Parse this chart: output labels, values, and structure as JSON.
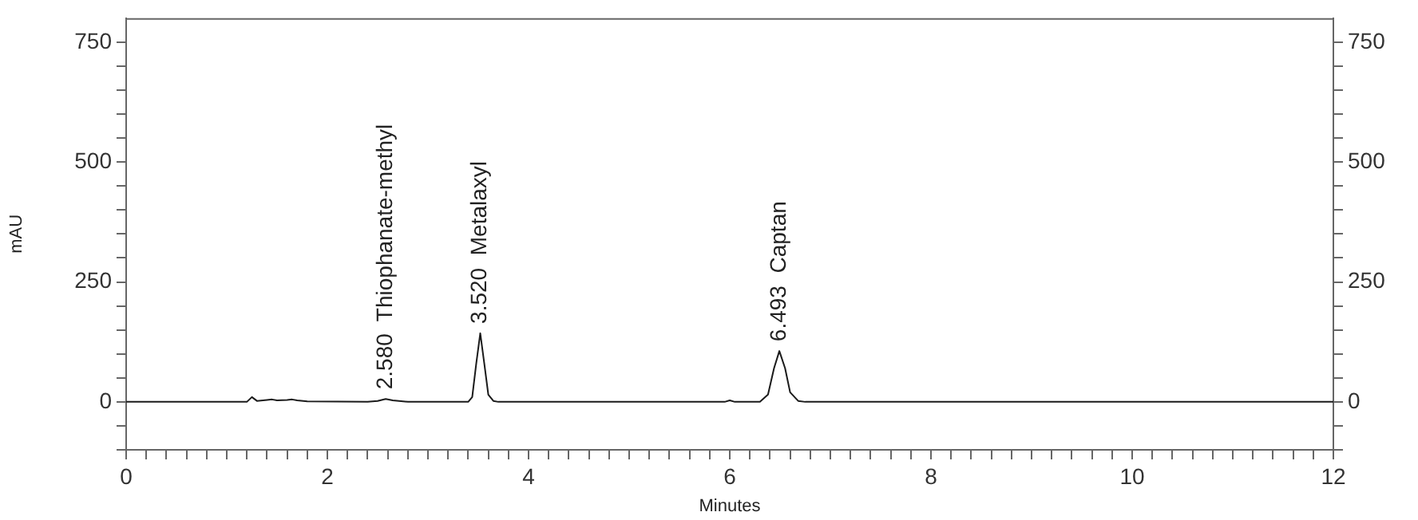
{
  "chart_data": {
    "type": "line",
    "xlabel": "Minutes",
    "ylabel": "mAU",
    "x": [
      0,
      1.2,
      1.25,
      1.3,
      1.4,
      1.45,
      1.5,
      1.6,
      1.65,
      1.7,
      1.8,
      2.4,
      2.5,
      2.58,
      2.65,
      2.8,
      3.4,
      3.44,
      3.48,
      3.52,
      3.56,
      3.6,
      3.65,
      3.7,
      5.95,
      6.0,
      6.05,
      6.3,
      6.38,
      6.44,
      6.493,
      6.55,
      6.6,
      6.68,
      6.75,
      12
    ],
    "series": [
      {
        "color": "#1a1a1a",
        "values": [
          0,
          0,
          10,
          2,
          4,
          5,
          3,
          4,
          5,
          3,
          1,
          0,
          2,
          6,
          3,
          0,
          0,
          10,
          80,
          143,
          80,
          15,
          2,
          0,
          0,
          3,
          0,
          0,
          15,
          70,
          106,
          70,
          20,
          2,
          0,
          0
        ]
      }
    ],
    "xlim": [
      0,
      12
    ],
    "xticks": [
      0,
      {
        "value": 0.2,
        "label": null
      },
      {
        "value": 0.4,
        "label": null
      },
      {
        "value": 0.6,
        "label": null
      },
      {
        "value": 0.8,
        "label": null
      },
      {
        "value": 1,
        "label": null
      },
      {
        "value": 1.2,
        "label": null
      },
      {
        "value": 1.4,
        "label": null
      },
      {
        "value": 1.6,
        "label": null
      },
      {
        "value": 1.8,
        "label": null
      },
      2,
      {
        "value": 2.2,
        "label": null
      },
      {
        "value": 2.4,
        "label": null
      },
      {
        "value": 2.6,
        "label": null
      },
      {
        "value": 2.8,
        "label": null
      },
      {
        "value": 3,
        "label": null
      },
      {
        "value": 3.2,
        "label": null
      },
      {
        "value": 3.4,
        "label": null
      },
      {
        "value": 3.6,
        "label": null
      },
      {
        "value": 3.8,
        "label": null
      },
      4,
      {
        "value": 4.2,
        "label": null
      },
      {
        "value": 4.4,
        "label": null
      },
      {
        "value": 4.6,
        "label": null
      },
      {
        "value": 4.8,
        "label": null
      },
      {
        "value": 5,
        "label": null
      },
      {
        "value": 5.2,
        "label": null
      },
      {
        "value": 5.4,
        "label": null
      },
      {
        "value": 5.6,
        "label": null
      },
      {
        "value": 5.8,
        "label": null
      },
      6,
      {
        "value": 6.2,
        "label": null
      },
      {
        "value": 6.4,
        "label": null
      },
      {
        "value": 6.6,
        "label": null
      },
      {
        "value": 6.8,
        "label": null
      },
      {
        "value": 7,
        "label": null
      },
      {
        "value": 7.2,
        "label": null
      },
      {
        "value": 7.4,
        "label": null
      },
      {
        "value": 7.6,
        "label": null
      },
      {
        "value": 7.8,
        "label": null
      },
      8,
      {
        "value": 8.2,
        "label": null
      },
      {
        "value": 8.4,
        "label": null
      },
      {
        "value": 8.6,
        "label": null
      },
      {
        "value": 8.8,
        "label": null
      },
      {
        "value": 9,
        "label": null
      },
      {
        "value": 9.2,
        "label": null
      },
      {
        "value": 9.4,
        "label": null
      },
      {
        "value": 9.6,
        "label": null
      },
      {
        "value": 9.8,
        "label": null
      },
      10,
      {
        "value": 10.2,
        "label": null
      },
      {
        "value": 10.4,
        "label": null
      },
      {
        "value": 10.6,
        "label": null
      },
      {
        "value": 10.8,
        "label": null
      },
      {
        "value": 11,
        "label": null
      },
      {
        "value": 11.2,
        "label": null
      },
      {
        "value": 11.4,
        "label": null
      },
      {
        "value": 11.6,
        "label": null
      },
      {
        "value": 11.8,
        "label": null
      },
      12
    ],
    "ylim": [
      -100,
      800
    ],
    "yticks": [
      {
        "value": -100,
        "label": null
      },
      {
        "value": -50,
        "label": null
      },
      0,
      {
        "value": 50,
        "label": null
      },
      {
        "value": 100,
        "label": null
      },
      {
        "value": 150,
        "label": null
      },
      {
        "value": 200,
        "label": null
      },
      250,
      {
        "value": 300,
        "label": null
      },
      {
        "value": 350,
        "label": null
      },
      {
        "value": 400,
        "label": null
      },
      {
        "value": 450,
        "label": null
      },
      500,
      {
        "value": 550,
        "label": null
      },
      {
        "value": 600,
        "label": null
      },
      {
        "value": 650,
        "label": null
      },
      {
        "value": 700,
        "label": null
      },
      750
    ],
    "y2lim": [
      -100,
      800
    ],
    "y2ticks": [
      {
        "value": -100,
        "label": null
      },
      {
        "value": -50,
        "label": null
      },
      0,
      {
        "value": 50,
        "label": null
      },
      {
        "value": 100,
        "label": null
      },
      {
        "value": 150,
        "label": null
      },
      {
        "value": 200,
        "label": null
      },
      250,
      {
        "value": 300,
        "label": null
      },
      {
        "value": 350,
        "label": null
      },
      {
        "value": 400,
        "label": null
      },
      {
        "value": 450,
        "label": null
      },
      500,
      {
        "value": 550,
        "label": null
      },
      {
        "value": 600,
        "label": null
      },
      {
        "value": 650,
        "label": null
      },
      {
        "value": 700,
        "label": null
      },
      750
    ],
    "annotations": [
      {
        "text": "2.580  Thiophanate-methyl",
        "x": 2.58,
        "y": 6
      },
      {
        "text": "3.520  Metalaxyl",
        "x": 3.52,
        "y": 143
      },
      {
        "text": "6.493  Captan",
        "x": 6.493,
        "y": 106
      }
    ],
    "grid": false,
    "legend": false,
    "marker": "none",
    "line_style": "solid"
  }
}
